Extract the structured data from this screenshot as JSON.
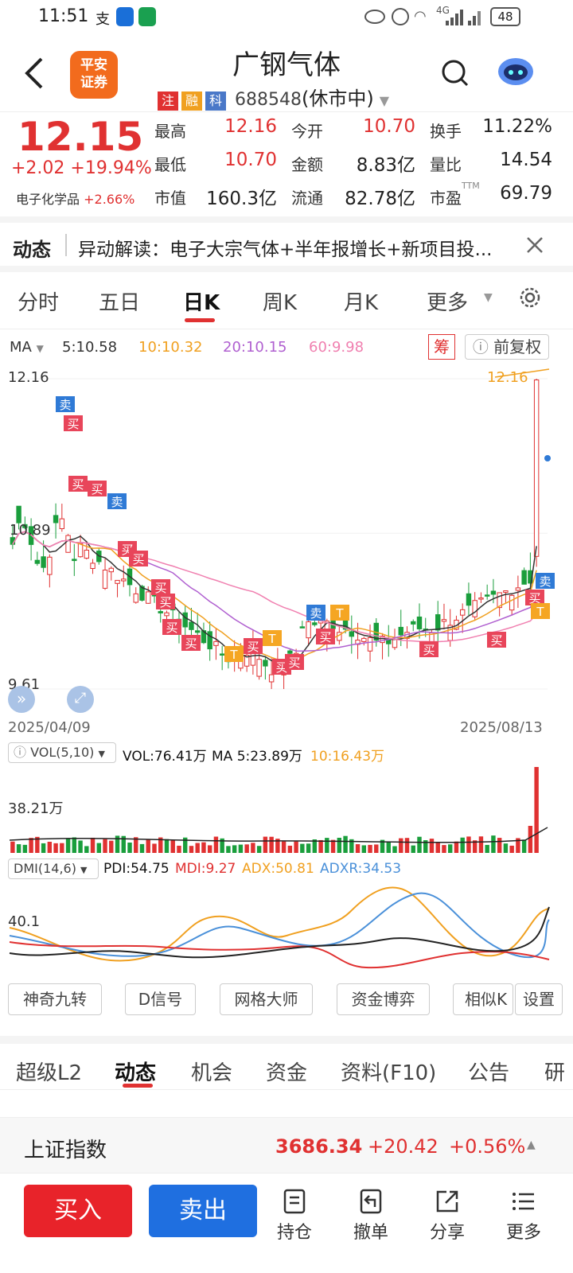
{
  "status": {
    "time": "11:51",
    "battery": "48",
    "net": "4G"
  },
  "header": {
    "logo_line1": "平安",
    "logo_line2": "证券",
    "title": "广钢气体",
    "tags": [
      "注",
      "融",
      "科"
    ],
    "code": "688548",
    "state": "(休市中)"
  },
  "quote": {
    "price": "12.15",
    "change": "+2.02",
    "change_pct": "+19.94%",
    "sector": "电子化学品",
    "sector_pct": "+2.66%",
    "rows": [
      [
        {
          "l": "最高",
          "v": "12.16",
          "c": "red"
        },
        {
          "l": "今开",
          "v": "10.70",
          "c": "red"
        },
        {
          "l": "换手",
          "v": "11.22%",
          "c": "dark"
        }
      ],
      [
        {
          "l": "最低",
          "v": "10.70",
          "c": "red"
        },
        {
          "l": "金额",
          "v": "8.83亿",
          "c": "dark"
        },
        {
          "l": "量比",
          "v": "14.54",
          "c": "dark"
        }
      ],
      [
        {
          "l": "市值",
          "v": "160.3亿",
          "c": "dark"
        },
        {
          "l": "流通",
          "v": "82.78亿",
          "c": "dark"
        },
        {
          "l": "市盈",
          "v": "69.79",
          "c": "dark",
          "sup": "TTM"
        }
      ]
    ]
  },
  "news": {
    "label": "动态",
    "text": "异动解读：电子大宗气体+半年报增长+新项目投..."
  },
  "tabs": [
    "分时",
    "五日",
    "日K",
    "周K",
    "月K",
    "更多"
  ],
  "ma": {
    "label": "MA",
    "ma5": "5:10.58",
    "ma10": "10:10.32",
    "ma20": "20:10.15",
    "ma60": "60:9.98",
    "chip": "筹",
    "adjust": "前复权"
  },
  "chart": {
    "high_label": "12.16",
    "mid_label": "10.89",
    "low_label": "9.61",
    "last_label": "12.16",
    "date_start": "2025/04/09",
    "date_end": "2025/08/13",
    "buy": "买",
    "sell": "卖",
    "t": "T"
  },
  "vol": {
    "label": "VOL(5,10)",
    "vol": "VOL:76.41万",
    "ma5": "MA 5:23.89万",
    "ma10": "10:16.43万",
    "axis": "38.21万"
  },
  "dmi": {
    "label": "DMI(14,6)",
    "pdi": "PDI:54.75",
    "mdi": "MDI:9.27",
    "adx": "ADX:50.81",
    "adxr": "ADXR:34.53",
    "axis": "40.1"
  },
  "tools": [
    "神奇九转",
    "D信号",
    "网格大师",
    "资金博弈",
    "相似K",
    "设置"
  ],
  "subtabs": [
    "超级L2",
    "动态",
    "机会",
    "资金",
    "资料(F10)",
    "公告",
    "研"
  ],
  "index": {
    "name": "上证指数",
    "value": "3686.34",
    "change": "+20.42",
    "pct": "+0.56%"
  },
  "bottom": {
    "buy": "买入",
    "sell": "卖出",
    "items": [
      "持仓",
      "撤单",
      "分享",
      "更多"
    ]
  },
  "colors": {
    "red": "#e03131",
    "green": "#1a9e3c",
    "ma5": "#333333",
    "ma10": "#f0a020",
    "ma20": "#b060d0",
    "ma60": "#f080b0",
    "sell_btn": "#1f6fe0"
  }
}
